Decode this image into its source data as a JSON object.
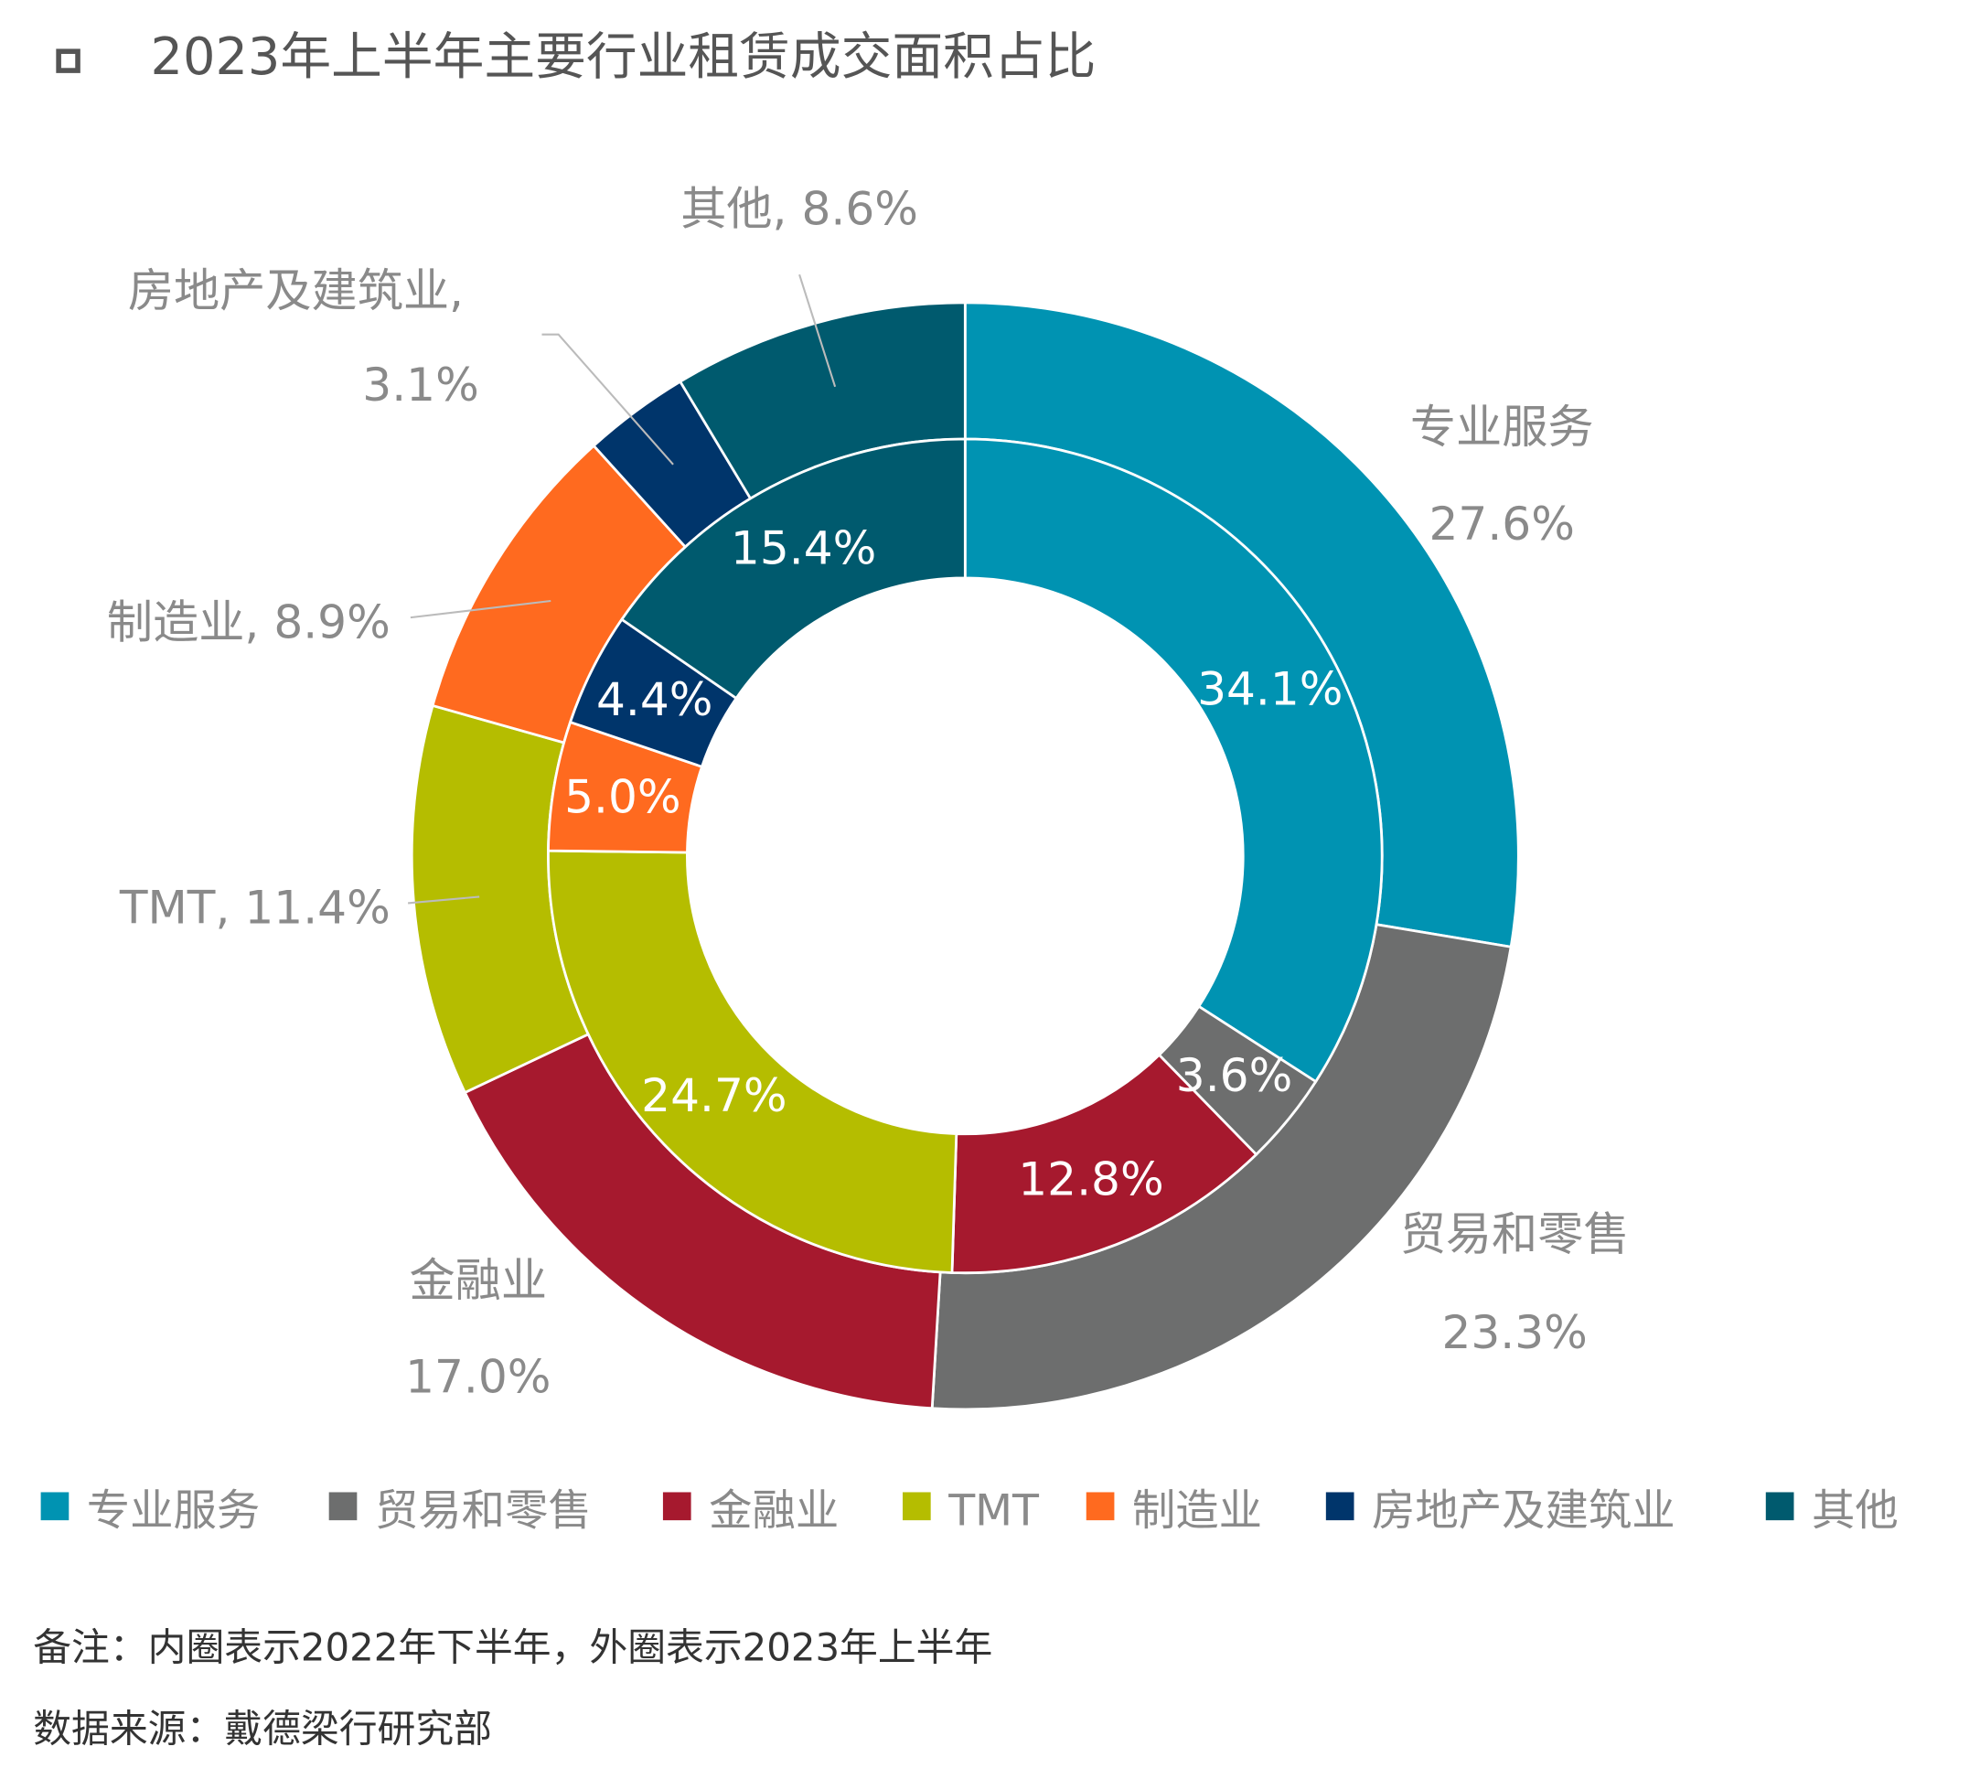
{
  "title": "2023年上半年主要行业租赁成交面积占比",
  "chart_data": {
    "type": "pie",
    "subtype": "nested-donut",
    "title": "2023年上半年主要行业租赁成交面积占比",
    "categories": [
      "专业服务",
      "贸易和零售",
      "金融业",
      "TMT",
      "制造业",
      "房地产及建筑业",
      "其他"
    ],
    "colors": [
      "#0093B2",
      "#6D6E6E",
      "#A6192E",
      "#B5BD00",
      "#FF6A1F",
      "#00356B",
      "#005A6E"
    ],
    "series": [
      {
        "name": "2023年上半年 (外圈)",
        "values": [
          27.6,
          23.3,
          17.0,
          11.4,
          8.9,
          3.1,
          8.6
        ]
      },
      {
        "name": "2022年下半年 (内圈)",
        "values": [
          34.1,
          3.6,
          12.8,
          24.7,
          5.0,
          4.4,
          15.4
        ]
      }
    ],
    "outer_labels": [
      [
        "专业服务",
        "27.6%"
      ],
      [
        "贸易和零售",
        "23.3%"
      ],
      [
        "金融业",
        "17.0%"
      ],
      [
        "TMT, 11.4%"
      ],
      [
        "制造业, 8.9%"
      ],
      [
        "房地产及建筑业,",
        "3.1%"
      ],
      [
        "其他, 8.6%"
      ]
    ],
    "inner_labels": [
      "34.1%",
      "3.6%",
      "12.8%",
      "24.7%",
      "5.0%",
      "4.4%",
      "15.4%"
    ],
    "legend": [
      "专业服务",
      "贸易和零售",
      "金融业",
      "TMT",
      "制造业",
      "房地产及建筑业",
      "其他"
    ],
    "legend_position": "bottom"
  },
  "notes": {
    "remark": "备注：内圈表示2022年下半年，外圈表示2023年上半年",
    "source": "数据来源：戴德梁行研究部"
  }
}
